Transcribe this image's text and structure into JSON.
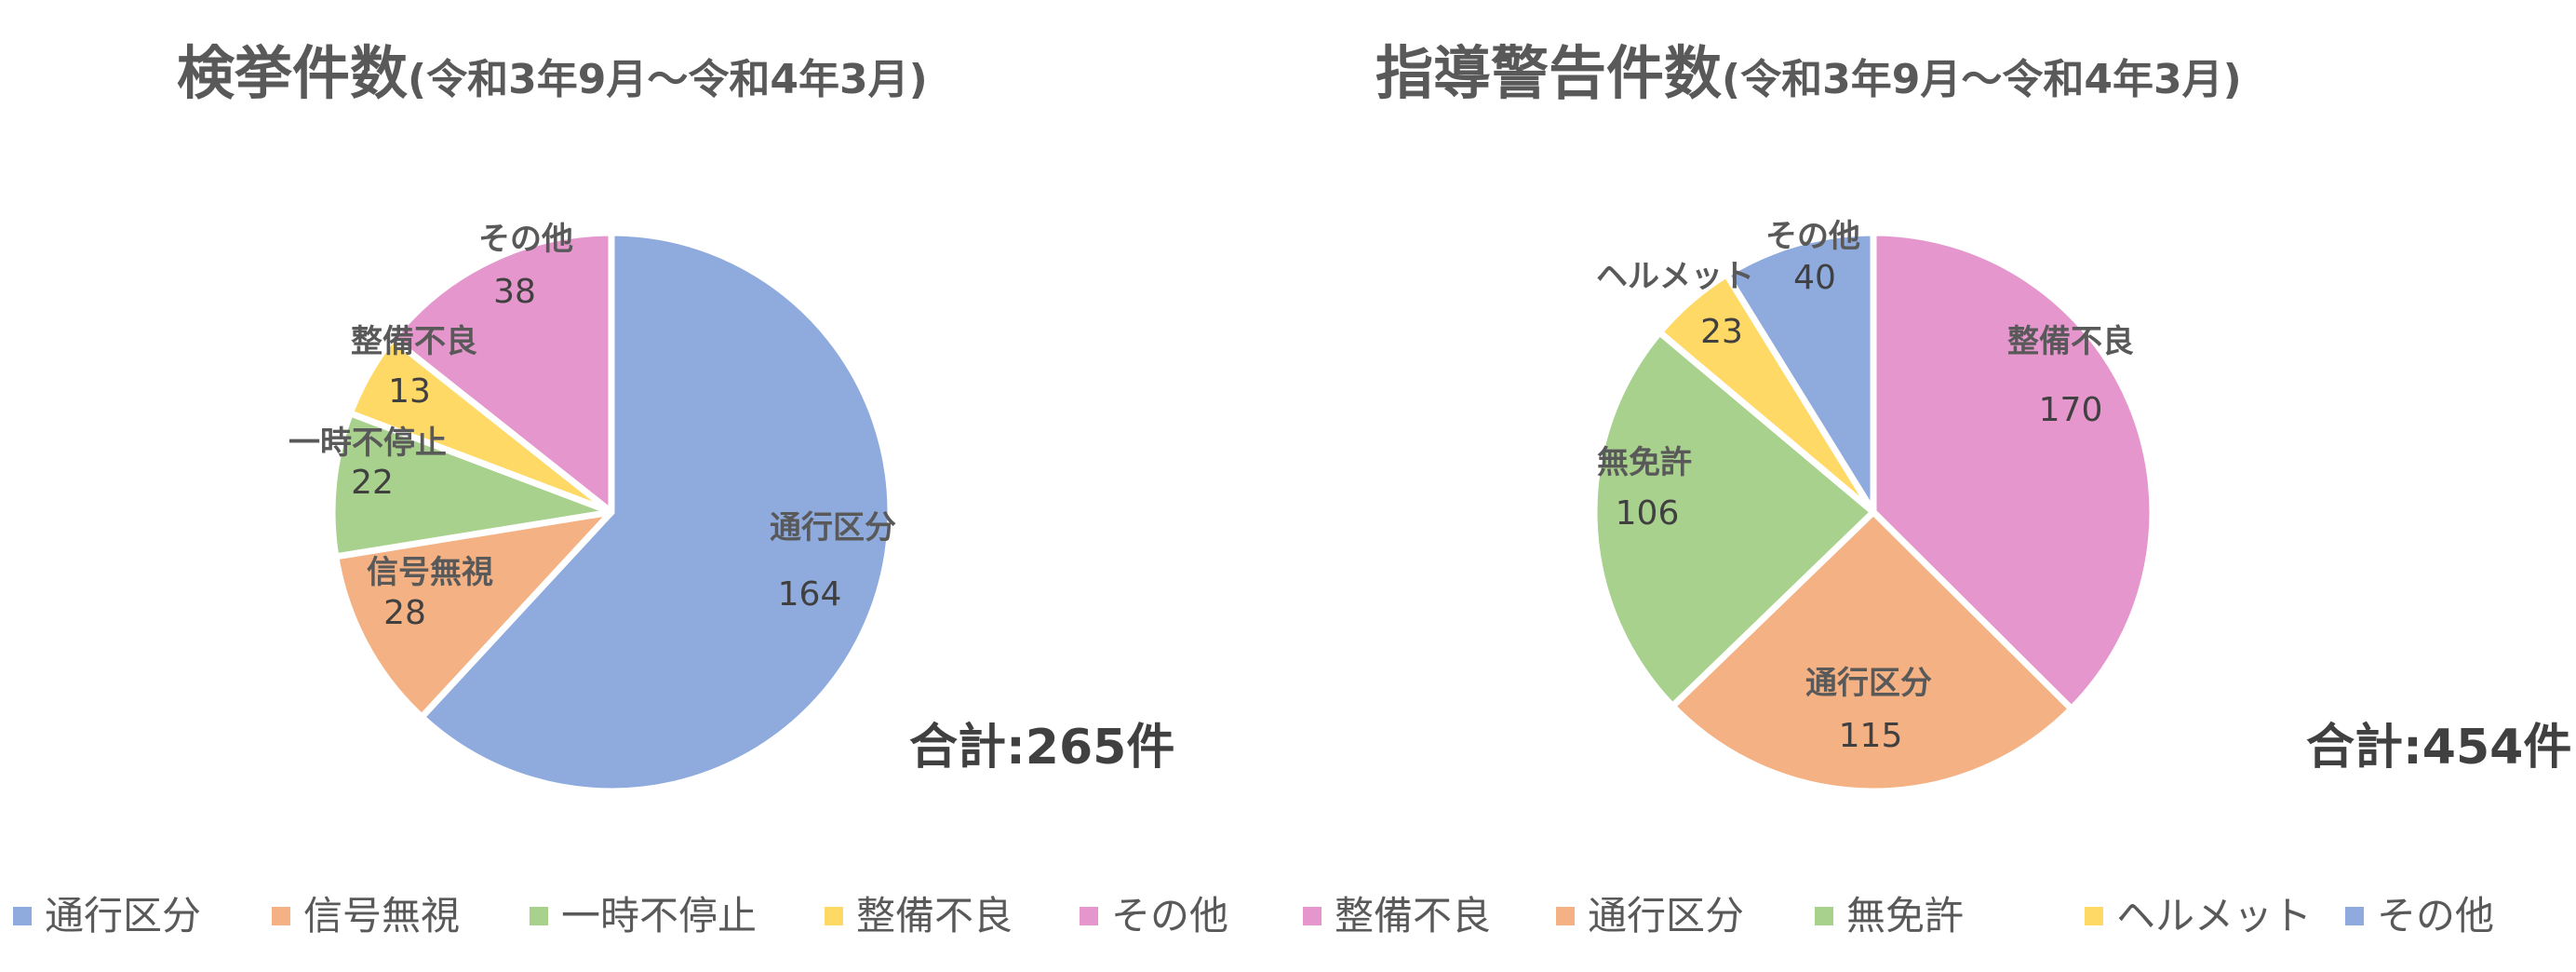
{
  "chart_data": [
    {
      "type": "pie",
      "title": "検挙件数",
      "subtitle": "(令和3年9月～令和4年3月)",
      "total_label": "合計:265件",
      "slices": [
        {
          "name": "通行区分",
          "value": 164,
          "color": "#8FAADC"
        },
        {
          "name": "信号無視",
          "value": 28,
          "color": "#F4B183"
        },
        {
          "name": "一時不停止",
          "value": 22,
          "color": "#A9D18E"
        },
        {
          "name": "整備不良",
          "value": 13,
          "color": "#FFD966"
        },
        {
          "name": "その他",
          "value": 38,
          "color": "#E597CD"
        }
      ],
      "legend_position": "bottom"
    },
    {
      "type": "pie",
      "title": "指導警告件数",
      "subtitle": "(令和3年9月～令和4年3月)",
      "total_label": "合計:454件",
      "slices": [
        {
          "name": "整備不良",
          "value": 170,
          "color": "#E597CD"
        },
        {
          "name": "通行区分",
          "value": 115,
          "color": "#F4B183"
        },
        {
          "name": "無免許",
          "value": 106,
          "color": "#A9D18E"
        },
        {
          "name": "ヘルメット",
          "value": 23,
          "color": "#FFD966"
        },
        {
          "name": "その他",
          "value": 40,
          "color": "#8FAADC"
        }
      ],
      "legend_position": "bottom"
    }
  ]
}
